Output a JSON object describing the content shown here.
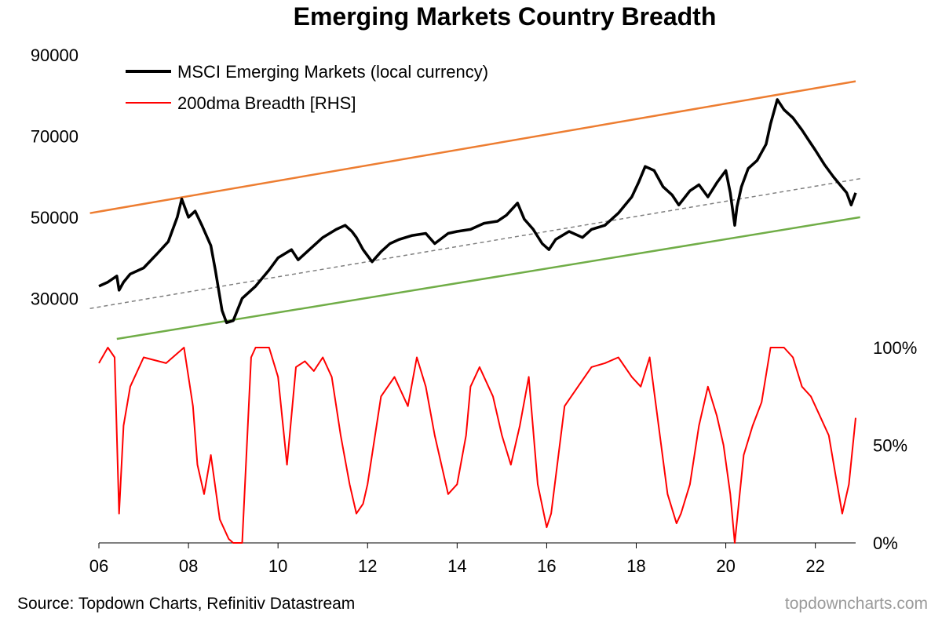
{
  "chart_data": {
    "type": "line",
    "title": "Emerging Markets Country Breadth",
    "source": "Source: Topdown Charts, Refinitiv Datastream",
    "watermark": "topdowncharts.com",
    "x_ticks": [
      "06",
      "08",
      "10",
      "12",
      "14",
      "16",
      "18",
      "20",
      "22"
    ],
    "x_tick_years": [
      2006,
      2008,
      2010,
      2012,
      2014,
      2016,
      2018,
      2020,
      2022
    ],
    "xlim": [
      2006.0,
      2022.9
    ],
    "left_axis": {
      "ticks": [
        "90000",
        "70000",
        "50000",
        "30000"
      ],
      "tick_values": [
        90000,
        70000,
        50000,
        30000
      ],
      "ylim": [
        20000,
        90000
      ]
    },
    "right_axis": {
      "ticks": [
        "100%",
        "50%",
        "0%"
      ],
      "tick_values": [
        100,
        50,
        0
      ],
      "ylim": [
        0,
        100
      ]
    },
    "legend": {
      "position": "top-left",
      "entries": [
        "MSCI Emerging Markets (local currency)",
        "200dma Breadth [RHS]"
      ]
    },
    "colors": {
      "index": "#000000",
      "breadth": "#ff0000",
      "upper_channel": "#ed7d31",
      "lower_channel": "#70ad47",
      "trend": "#808080"
    },
    "series": [
      {
        "name": "MSCI Emerging Markets (local currency)",
        "axis": "left",
        "x": [
          2006.0,
          2006.2,
          2006.4,
          2006.45,
          2006.55,
          2006.7,
          2007.0,
          2007.3,
          2007.55,
          2007.75,
          2007.85,
          2008.0,
          2008.15,
          2008.3,
          2008.5,
          2008.6,
          2008.75,
          2008.85,
          2009.0,
          2009.2,
          2009.5,
          2009.8,
          2010.0,
          2010.3,
          2010.45,
          2010.7,
          2011.0,
          2011.3,
          2011.5,
          2011.65,
          2011.75,
          2011.9,
          2012.1,
          2012.3,
          2012.5,
          2012.7,
          2013.0,
          2013.3,
          2013.5,
          2013.8,
          2014.0,
          2014.3,
          2014.6,
          2014.9,
          2015.1,
          2015.35,
          2015.5,
          2015.7,
          2015.9,
          2016.05,
          2016.2,
          2016.5,
          2016.8,
          2017.0,
          2017.3,
          2017.6,
          2017.9,
          2018.05,
          2018.2,
          2018.4,
          2018.6,
          2018.8,
          2018.95,
          2019.2,
          2019.4,
          2019.6,
          2019.8,
          2020.0,
          2020.1,
          2020.2,
          2020.25,
          2020.35,
          2020.5,
          2020.7,
          2020.9,
          2021.0,
          2021.15,
          2021.3,
          2021.5,
          2021.7,
          2021.85,
          2022.0,
          2022.2,
          2022.4,
          2022.55,
          2022.7,
          2022.8,
          2022.9
        ],
        "values": [
          33000,
          34000,
          35500,
          32000,
          34000,
          36000,
          37500,
          41000,
          44000,
          50000,
          54500,
          50000,
          51500,
          48000,
          43000,
          37000,
          27000,
          24000,
          24500,
          30000,
          33000,
          37000,
          40000,
          42000,
          39500,
          42000,
          45000,
          47000,
          48000,
          46500,
          45000,
          42000,
          39000,
          41500,
          43500,
          44500,
          45500,
          46000,
          43500,
          46000,
          46500,
          47000,
          48500,
          49000,
          50500,
          53500,
          49500,
          47000,
          43500,
          42000,
          44500,
          46500,
          45000,
          47000,
          48000,
          51000,
          55000,
          58500,
          62500,
          61500,
          57500,
          55500,
          53000,
          56500,
          58000,
          55000,
          58500,
          61500,
          56000,
          48000,
          52500,
          57500,
          62000,
          64000,
          68000,
          73000,
          79000,
          76500,
          74500,
          71500,
          69000,
          66500,
          63000,
          60000,
          58000,
          56000,
          53000,
          56000
        ]
      },
      {
        "name": "200dma Breadth [RHS]",
        "axis": "right",
        "x": [
          2006.0,
          2006.2,
          2006.35,
          2006.45,
          2006.55,
          2006.7,
          2007.0,
          2007.5,
          2007.9,
          2008.1,
          2008.2,
          2008.35,
          2008.5,
          2008.7,
          2008.9,
          2009.0,
          2009.2,
          2009.4,
          2009.5,
          2009.8,
          2010.0,
          2010.2,
          2010.4,
          2010.6,
          2010.8,
          2011.0,
          2011.2,
          2011.4,
          2011.6,
          2011.75,
          2011.9,
          2012.0,
          2012.3,
          2012.6,
          2012.9,
          2013.1,
          2013.3,
          2013.5,
          2013.8,
          2014.0,
          2014.2,
          2014.3,
          2014.5,
          2014.8,
          2015.0,
          2015.2,
          2015.4,
          2015.6,
          2015.8,
          2016.0,
          2016.1,
          2016.4,
          2016.7,
          2017.0,
          2017.3,
          2017.6,
          2017.9,
          2018.1,
          2018.3,
          2018.5,
          2018.7,
          2018.9,
          2019.0,
          2019.2,
          2019.4,
          2019.6,
          2019.8,
          2019.95,
          2020.1,
          2020.2,
          2020.4,
          2020.6,
          2020.8,
          2021.0,
          2021.3,
          2021.5,
          2021.7,
          2021.9,
          2022.1,
          2022.3,
          2022.45,
          2022.6,
          2022.75,
          2022.9
        ],
        "values": [
          92,
          100,
          95,
          15,
          60,
          80,
          95,
          92,
          100,
          70,
          40,
          25,
          45,
          12,
          2,
          0,
          0,
          95,
          100,
          100,
          85,
          40,
          90,
          93,
          88,
          95,
          85,
          55,
          30,
          15,
          20,
          30,
          75,
          85,
          70,
          95,
          80,
          55,
          25,
          30,
          55,
          80,
          90,
          75,
          55,
          40,
          60,
          85,
          30,
          8,
          15,
          70,
          80,
          90,
          92,
          95,
          85,
          80,
          95,
          60,
          25,
          10,
          15,
          30,
          60,
          80,
          65,
          50,
          25,
          0,
          45,
          60,
          72,
          100,
          100,
          95,
          80,
          75,
          65,
          55,
          35,
          15,
          30,
          64
        ]
      }
    ],
    "channel_lines": {
      "upper": {
        "x": [
          2005.8,
          2022.9
        ],
        "values": [
          51000,
          83500
        ]
      },
      "lower": {
        "x": [
          2006.4,
          2023.0
        ],
        "values": [
          20000,
          50000
        ]
      },
      "trend": {
        "x": [
          2005.8,
          2023.0
        ],
        "values": [
          27500,
          59500
        ]
      }
    }
  }
}
